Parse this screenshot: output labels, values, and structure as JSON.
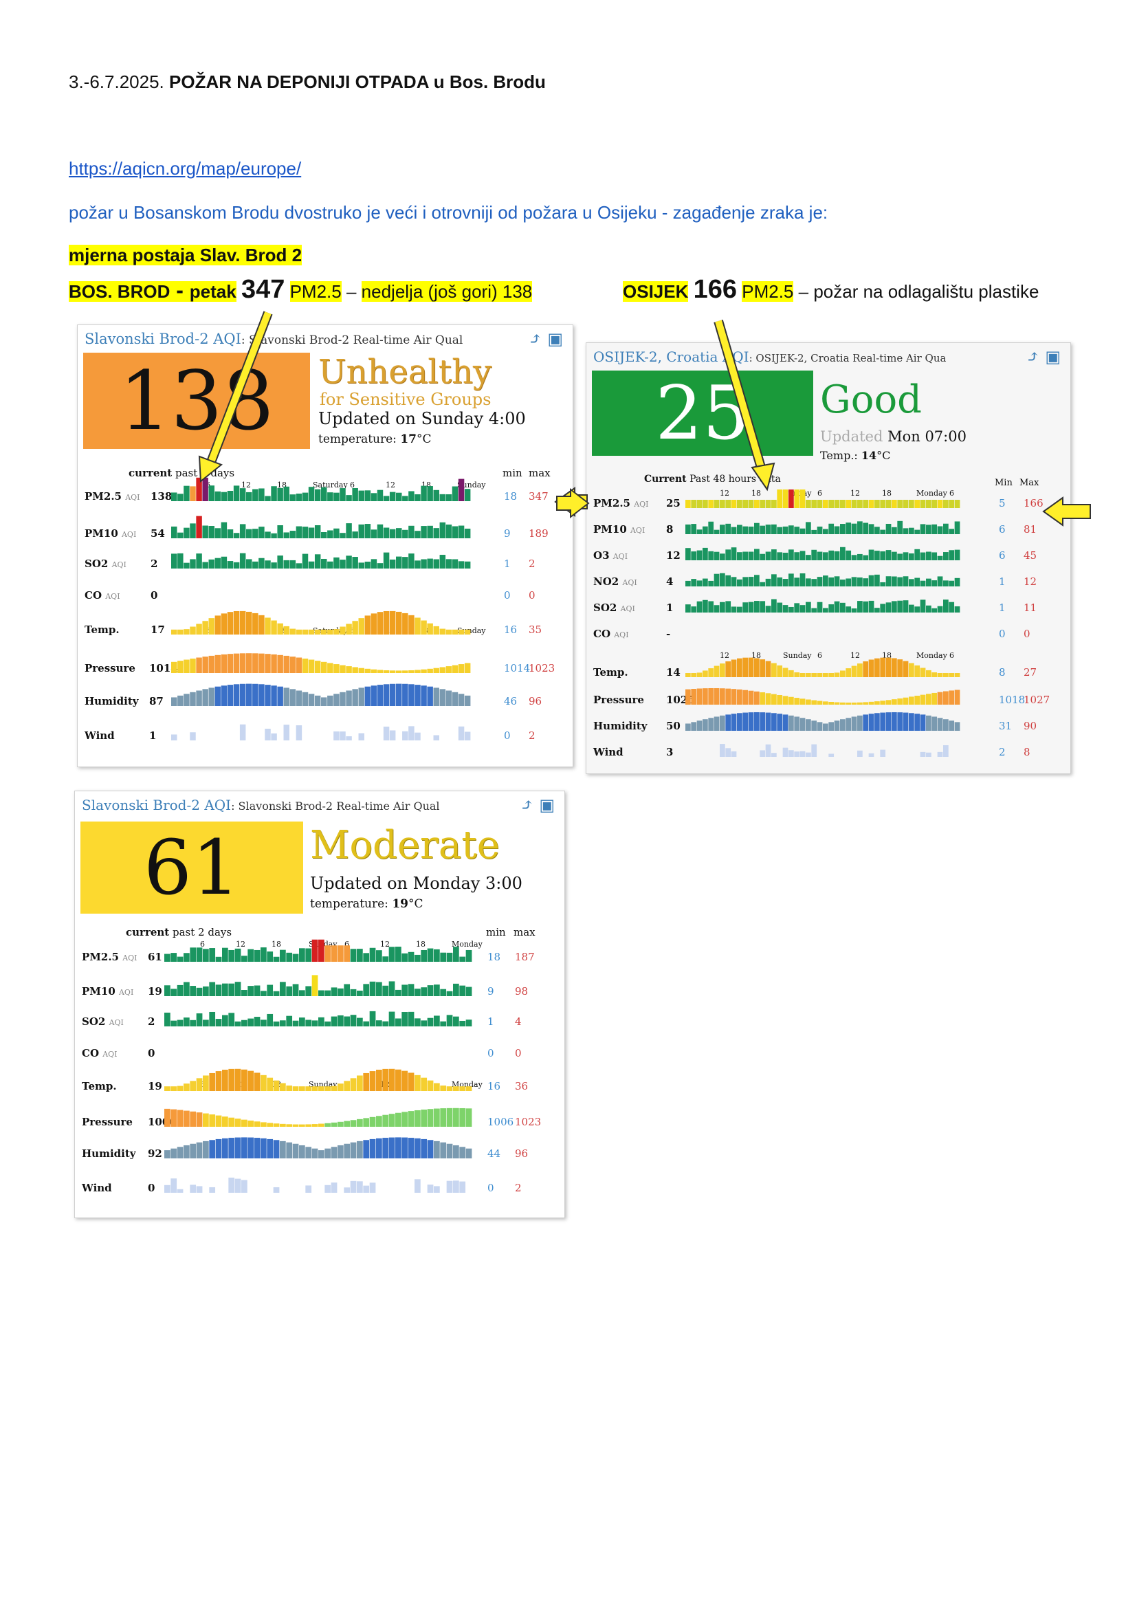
{
  "doc": {
    "line1_pre": "3.-6.7.2025. ",
    "line1_bold": "POŽAR NA DEPONIJI OTPADA u Bos. Brodu",
    "link": "https://aqicn.org/map/europe/",
    "line3": "požar u Bosanskom Brodu dvostruko je veći i otrovniji od požara u Osijeku  - zagađenje zraka je:",
    "line4": "mjerna postaja Slav. Brod 2",
    "bos_label": "BOS. BROD",
    "bos_dash": " - ",
    "bos_day": "petak",
    "bos_value": "347",
    "bos_unit": "PM2.5",
    "bos_sep": " – ",
    "bos_note": "nedjelja (još gori) 138",
    "osijek_label": "OSIJEK",
    "osijek_value": "166",
    "osijek_unit": "PM2.5",
    "osijek_note": " – požar na odlagalištu plastike"
  },
  "colors": {
    "unhealthy": "#f59a3a",
    "good": "#1a9a3a",
    "moderate": "#fcd92f",
    "aqi_green": "#1a9560",
    "aqi_yellow": "#f5dc1c",
    "aqi_orange": "#f59a3a",
    "aqi_red": "#d62020",
    "aqi_purple": "#7a1a6a",
    "arrow": "#ffef2a"
  },
  "widgets": [
    {
      "title": "Slavonski Brod-2 AQI",
      "subtitle": ": Slavonski Brod-2 Real-time Air Qual",
      "aqi": "138",
      "status": "Unhealthy",
      "status2": "for Sensitive Groups",
      "updated": "Updated on Sunday 4:00",
      "temp_label": "temperature: ",
      "temp_value": "17",
      "temp_unit": "°C",
      "hdr_current": "current",
      "hdr_past": "past 2 days",
      "hdr_min": "min",
      "hdr_max": "max",
      "ticks1": [
        "6",
        "12",
        "18",
        "Saturday",
        "6",
        "12",
        "18",
        "Sunday"
      ],
      "ticks2": [
        "6",
        "12",
        "18",
        "Saturday",
        "6",
        "12",
        "18",
        "Sunday"
      ],
      "rows": [
        {
          "label": "PM2.5",
          "aqi": "AQI",
          "cur": "138",
          "min": "18",
          "max": "347"
        },
        {
          "label": "PM10",
          "aqi": "AQI",
          "cur": "54",
          "min": "9",
          "max": "189"
        },
        {
          "label": "SO2",
          "aqi": "AQI",
          "cur": "2",
          "min": "1",
          "max": "2"
        },
        {
          "label": "CO",
          "aqi": "AQI",
          "cur": "0",
          "min": "0",
          "max": "0"
        },
        {
          "label": "Temp.",
          "aqi": "",
          "cur": "17",
          "min": "16",
          "max": "35"
        },
        {
          "label": "Pressure",
          "aqi": "",
          "cur": "1014",
          "min": "1014",
          "max": "1023"
        },
        {
          "label": "Humidity",
          "aqi": "",
          "cur": "87",
          "min": "46",
          "max": "96"
        },
        {
          "label": "Wind",
          "aqi": "",
          "cur": "1",
          "min": "0",
          "max": "2"
        }
      ]
    },
    {
      "title": "OSIJEK-2, Croatia AQI",
      "subtitle": ": OSIJEK-2, Croatia Real-time Air Qua",
      "aqi": "25",
      "status": "Good",
      "status2": "",
      "updated_grey": "Updated ",
      "updated": "Mon 07:00",
      "temp_label": "Temp.: ",
      "temp_value": "14",
      "temp_unit": "°C",
      "hdr_current": "Current",
      "hdr_past": "Past 48 hours data",
      "hdr_min": "Min",
      "hdr_max": "Max",
      "ticks1": [
        "12",
        "18",
        "Sunday",
        "6",
        "12",
        "18",
        "Monday",
        "6"
      ],
      "ticks2": [
        "12",
        "18",
        "Sunday",
        "6",
        "12",
        "18",
        "Monday",
        "6"
      ],
      "rows": [
        {
          "label": "PM2.5",
          "aqi": "AQI",
          "cur": "25",
          "min": "5",
          "max": "166"
        },
        {
          "label": "PM10",
          "aqi": "AQI",
          "cur": "8",
          "min": "6",
          "max": "81"
        },
        {
          "label": "O3",
          "aqi": "AQI",
          "cur": "12",
          "min": "6",
          "max": "45"
        },
        {
          "label": "NO2",
          "aqi": "AQI",
          "cur": "4",
          "min": "1",
          "max": "12"
        },
        {
          "label": "SO2",
          "aqi": "AQI",
          "cur": "1",
          "min": "1",
          "max": "11"
        },
        {
          "label": "CO",
          "aqi": "AQI",
          "cur": "-",
          "min": "0",
          "max": "0"
        },
        {
          "label": "Temp.",
          "aqi": "",
          "cur": "14",
          "min": "8",
          "max": "27"
        },
        {
          "label": "Pressure",
          "aqi": "",
          "cur": "1025",
          "min": "1018",
          "max": "1027"
        },
        {
          "label": "Humidity",
          "aqi": "",
          "cur": "50",
          "min": "31",
          "max": "90"
        },
        {
          "label": "Wind",
          "aqi": "",
          "cur": "3",
          "min": "2",
          "max": "8"
        }
      ]
    },
    {
      "title": "Slavonski Brod-2 AQI",
      "subtitle": ": Slavonski Brod-2 Real-time Air Qual",
      "aqi": "61",
      "status": "Moderate",
      "status2": "",
      "updated": "Updated on Monday 3:00",
      "temp_label": "temperature: ",
      "temp_value": "19",
      "temp_unit": "°C",
      "hdr_current": "current",
      "hdr_past": "past 2 days",
      "hdr_min": "min",
      "hdr_max": "max",
      "ticks1": [
        "6",
        "12",
        "18",
        "Sunday",
        "6",
        "12",
        "18",
        "Monday"
      ],
      "ticks2": [
        "6",
        "12",
        "18",
        "Sunday",
        "6",
        "12",
        "18",
        "Monday"
      ],
      "rows": [
        {
          "label": "PM2.5",
          "aqi": "AQI",
          "cur": "61",
          "min": "18",
          "max": "187"
        },
        {
          "label": "PM10",
          "aqi": "AQI",
          "cur": "19",
          "min": "9",
          "max": "98"
        },
        {
          "label": "SO2",
          "aqi": "AQI",
          "cur": "2",
          "min": "1",
          "max": "4"
        },
        {
          "label": "CO",
          "aqi": "AQI",
          "cur": "0",
          "min": "0",
          "max": "0"
        },
        {
          "label": "Temp.",
          "aqi": "",
          "cur": "19",
          "min": "16",
          "max": "36"
        },
        {
          "label": "Pressure",
          "aqi": "",
          "cur": "1006",
          "min": "1006",
          "max": "1023"
        },
        {
          "label": "Humidity",
          "aqi": "",
          "cur": "92",
          "min": "44",
          "max": "96"
        },
        {
          "label": "Wind",
          "aqi": "",
          "cur": "0",
          "min": "0",
          "max": "2"
        }
      ]
    }
  ]
}
